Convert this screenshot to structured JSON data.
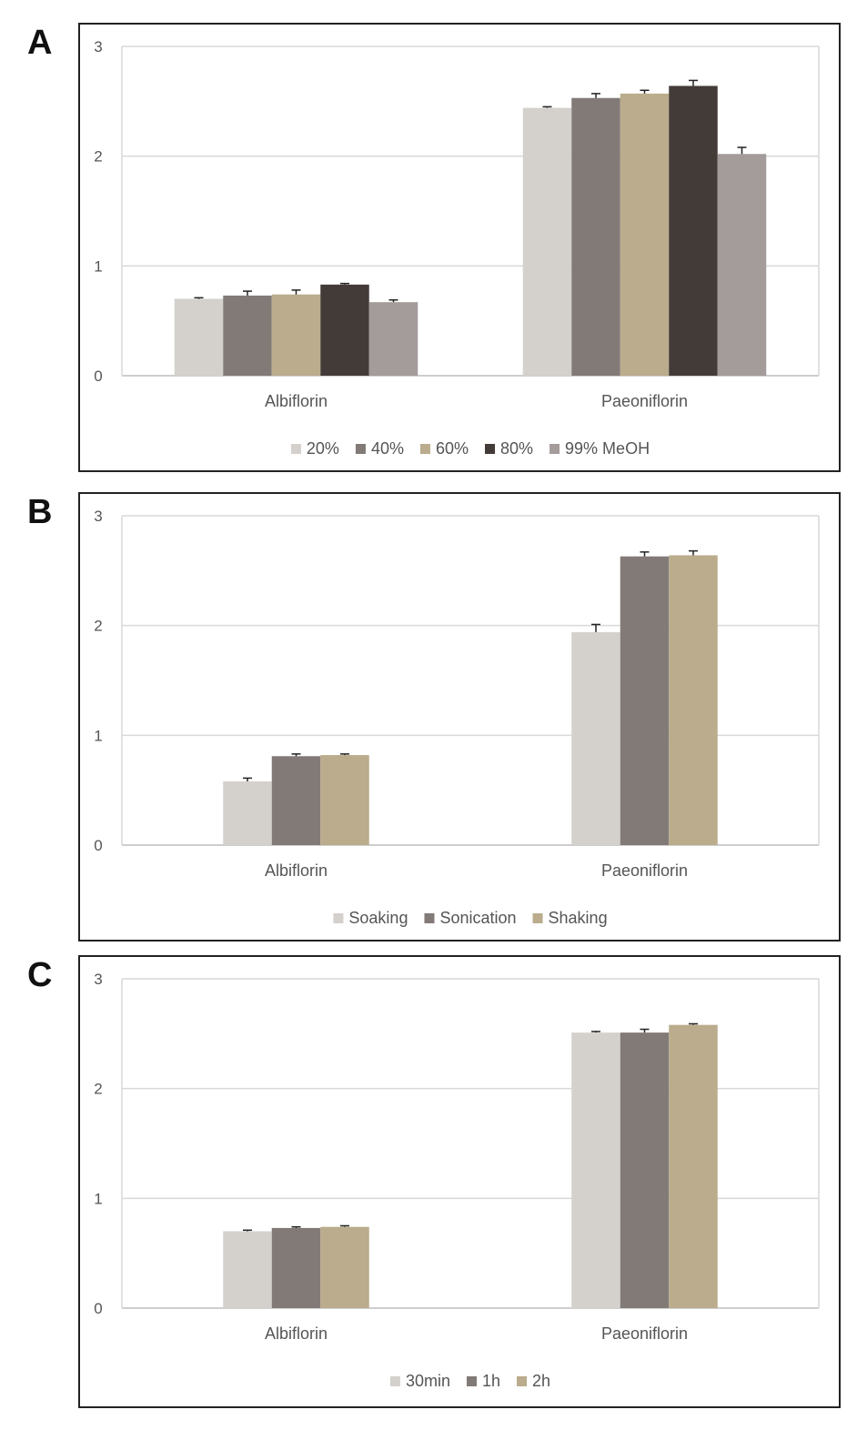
{
  "chart_data": [
    {
      "panel_letter": "A",
      "type": "bar",
      "categories": [
        "Albiflorin",
        "Paeoniflorin"
      ],
      "ylim": [
        0,
        3
      ],
      "yticks": [
        "0",
        "1",
        "2",
        "3"
      ],
      "grid": true,
      "legend_position": "bottom",
      "series": [
        {
          "name": "20%",
          "color": "#d4d1cd",
          "values": [
            0.7,
            2.44
          ],
          "errors": [
            0.01,
            0.01
          ]
        },
        {
          "name": "40%",
          "color": "#827a77",
          "values": [
            0.73,
            2.53
          ],
          "errors": [
            0.04,
            0.04
          ]
        },
        {
          "name": "60%",
          "color": "#baac8c",
          "values": [
            0.74,
            2.57
          ],
          "errors": [
            0.04,
            0.03
          ]
        },
        {
          "name": "80%",
          "color": "#433b38",
          "values": [
            0.83,
            2.64
          ],
          "errors": [
            0.01,
            0.05
          ]
        },
        {
          "name": "99% MeOH",
          "color": "#a39c9b",
          "values": [
            0.67,
            2.02
          ],
          "errors": [
            0.02,
            0.06
          ]
        }
      ]
    },
    {
      "panel_letter": "B",
      "type": "bar",
      "categories": [
        "Albiflorin",
        "Paeoniflorin"
      ],
      "ylim": [
        0,
        3
      ],
      "yticks": [
        "0",
        "1",
        "2",
        "3"
      ],
      "grid": true,
      "legend_position": "bottom",
      "series": [
        {
          "name": "Soaking",
          "color": "#d4d1cd",
          "values": [
            0.58,
            1.94
          ],
          "errors": [
            0.03,
            0.07
          ]
        },
        {
          "name": "Sonication",
          "color": "#827a77",
          "values": [
            0.81,
            2.63
          ],
          "errors": [
            0.02,
            0.04
          ]
        },
        {
          "name": "Shaking",
          "color": "#baac8c",
          "values": [
            0.82,
            2.64
          ],
          "errors": [
            0.01,
            0.04
          ]
        }
      ]
    },
    {
      "panel_letter": "C",
      "type": "bar",
      "categories": [
        "Albiflorin",
        "Paeoniflorin"
      ],
      "ylim": [
        0,
        3
      ],
      "yticks": [
        "0",
        "1",
        "2",
        "3"
      ],
      "grid": true,
      "legend_position": "bottom",
      "series": [
        {
          "name": "30min",
          "color": "#d4d1cd",
          "values": [
            0.7,
            2.51
          ],
          "errors": [
            0.01,
            0.01
          ]
        },
        {
          "name": "1h",
          "color": "#827a77",
          "values": [
            0.73,
            2.51
          ],
          "errors": [
            0.01,
            0.03
          ]
        },
        {
          "name": "2h",
          "color": "#baac8c",
          "values": [
            0.74,
            2.58
          ],
          "errors": [
            0.01,
            0.01
          ]
        }
      ]
    }
  ]
}
